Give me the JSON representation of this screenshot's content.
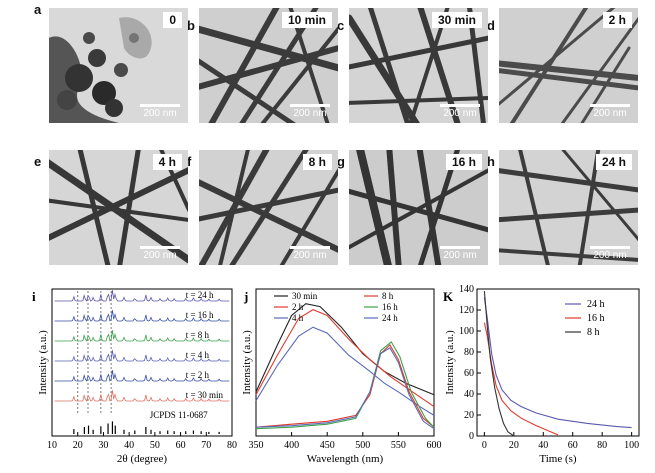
{
  "panels": [
    {
      "letter": "a",
      "time": "0",
      "scale": "200 nm"
    },
    {
      "letter": "b",
      "time": "10 min",
      "scale": "200 nm"
    },
    {
      "letter": "c",
      "time": "30 min",
      "scale": "200 nm"
    },
    {
      "letter": "d",
      "time": "2 h",
      "scale": "200 nm"
    },
    {
      "letter": "e",
      "time": "4 h",
      "scale": "200 nm"
    },
    {
      "letter": "f",
      "time": "8 h",
      "scale": "200 nm"
    },
    {
      "letter": "g",
      "time": "16 h",
      "scale": "200 nm"
    },
    {
      "letter": "h",
      "time": "24 h",
      "scale": "200 nm"
    }
  ],
  "chart_data": [
    {
      "type": "line",
      "panel": "i",
      "xlabel": "2θ (degree)",
      "ylabel": "Intensity (a.u.)",
      "xlim": [
        10,
        80
      ],
      "xticks": [
        10,
        20,
        30,
        40,
        50,
        60,
        70,
        80
      ],
      "series": [
        {
          "name": "t = 24 h",
          "color": "#5b55b0"
        },
        {
          "name": "t = 16 h",
          "color": "#3a4fa8"
        },
        {
          "name": "t = 8 h",
          "color": "#3aa04a"
        },
        {
          "name": "t = 4 h",
          "color": "#5a62b5"
        },
        {
          "name": "t = 2 h",
          "color": "#3a4fa8"
        },
        {
          "name": "t = 30 min",
          "color": "#e07060"
        }
      ],
      "reference": {
        "name": "JCPDS 11-0687",
        "peaks": [
          {
            "x": 18.5,
            "h": 0.35
          },
          {
            "x": 22.6,
            "h": 0.5
          },
          {
            "x": 24.2,
            "h": 0.6
          },
          {
            "x": 26.0,
            "h": 0.3
          },
          {
            "x": 29.0,
            "h": 0.55
          },
          {
            "x": 31.8,
            "h": 0.75
          },
          {
            "x": 33.5,
            "h": 0.9
          },
          {
            "x": 34.6,
            "h": 0.6
          },
          {
            "x": 38.0,
            "h": 0.3
          },
          {
            "x": 42.2,
            "h": 0.25
          },
          {
            "x": 46.5,
            "h": 0.5
          },
          {
            "x": 48.5,
            "h": 0.3
          },
          {
            "x": 52.0,
            "h": 0.2
          },
          {
            "x": 55.0,
            "h": 0.25
          },
          {
            "x": 57.5,
            "h": 0.2
          },
          {
            "x": 62.0,
            "h": 0.2
          },
          {
            "x": 65.0,
            "h": 0.25
          },
          {
            "x": 68.0,
            "h": 0.2
          },
          {
            "x": 71.0,
            "h": 0.15
          },
          {
            "x": 75.0,
            "h": 0.15
          }
        ]
      },
      "marker_lines": [
        20,
        24,
        29,
        33
      ]
    },
    {
      "type": "line",
      "panel": "j",
      "xlabel": "Wavelength (nm)",
      "ylabel": "Intensity (a.u.)",
      "xlim": [
        350,
        600
      ],
      "xticks": [
        350,
        400,
        450,
        500,
        550,
        600
      ],
      "series": [
        {
          "name": "30 min",
          "color": "#222222",
          "points": [
            [
              350,
              0.3
            ],
            [
              380,
              0.62
            ],
            [
              400,
              0.82
            ],
            [
              420,
              0.9
            ],
            [
              440,
              0.88
            ],
            [
              470,
              0.74
            ],
            [
              500,
              0.56
            ],
            [
              530,
              0.44
            ],
            [
              560,
              0.36
            ],
            [
              600,
              0.28
            ]
          ]
        },
        {
          "name": "2 h",
          "color": "#e03a2c",
          "points": [
            [
              350,
              0.28
            ],
            [
              380,
              0.55
            ],
            [
              410,
              0.8
            ],
            [
              430,
              0.86
            ],
            [
              450,
              0.82
            ],
            [
              480,
              0.66
            ],
            [
              510,
              0.52
            ],
            [
              540,
              0.4
            ],
            [
              570,
              0.3
            ],
            [
              600,
              0.2
            ]
          ]
        },
        {
          "name": "4 h",
          "color": "#5a6ab8",
          "points": [
            [
              350,
              0.24
            ],
            [
              380,
              0.48
            ],
            [
              410,
              0.68
            ],
            [
              430,
              0.74
            ],
            [
              450,
              0.7
            ],
            [
              480,
              0.55
            ],
            [
              510,
              0.44
            ],
            [
              530,
              0.36
            ],
            [
              550,
              0.3
            ],
            [
              580,
              0.2
            ],
            [
              600,
              0.14
            ]
          ]
        },
        {
          "name": "8 h",
          "color": "#e03a2c",
          "points": [
            [
              350,
              0.06
            ],
            [
              400,
              0.08
            ],
            [
              450,
              0.1
            ],
            [
              490,
              0.14
            ],
            [
              510,
              0.28
            ],
            [
              525,
              0.56
            ],
            [
              538,
              0.62
            ],
            [
              550,
              0.52
            ],
            [
              565,
              0.3
            ],
            [
              585,
              0.12
            ],
            [
              600,
              0.06
            ]
          ]
        },
        {
          "name": "16 h",
          "color": "#3aa04a",
          "points": [
            [
              350,
              0.05
            ],
            [
              400,
              0.06
            ],
            [
              450,
              0.08
            ],
            [
              490,
              0.12
            ],
            [
              510,
              0.3
            ],
            [
              525,
              0.58
            ],
            [
              540,
              0.64
            ],
            [
              552,
              0.54
            ],
            [
              568,
              0.3
            ],
            [
              588,
              0.12
            ],
            [
              600,
              0.06
            ]
          ]
        },
        {
          "name": "24 h",
          "color": "#5a6ab8",
          "points": [
            [
              350,
              0.06
            ],
            [
              400,
              0.07
            ],
            [
              450,
              0.09
            ],
            [
              490,
              0.13
            ],
            [
              510,
              0.3
            ],
            [
              525,
              0.56
            ],
            [
              538,
              0.6
            ],
            [
              550,
              0.5
            ],
            [
              565,
              0.28
            ],
            [
              585,
              0.1
            ],
            [
              600,
              0.05
            ]
          ]
        }
      ]
    },
    {
      "type": "line",
      "panel": "K",
      "xlabel": "Time (s)",
      "ylabel": "Intensity (a.u.)",
      "xlim": [
        -5,
        105
      ],
      "ylim": [
        0,
        140
      ],
      "xticks": [
        0,
        20,
        40,
        60,
        80,
        100
      ],
      "yticks": [
        0,
        20,
        40,
        60,
        80,
        100,
        120,
        140
      ],
      "series": [
        {
          "name": "24 h",
          "color": "#5a5ab0",
          "points": [
            [
              0,
              132
            ],
            [
              2,
              112
            ],
            [
              5,
              78
            ],
            [
              8,
              58
            ],
            [
              12,
              44
            ],
            [
              18,
              34
            ],
            [
              25,
              28
            ],
            [
              35,
              22
            ],
            [
              50,
              16
            ],
            [
              70,
              12
            ],
            [
              90,
              9
            ],
            [
              100,
              8
            ]
          ]
        },
        {
          "name": "16 h",
          "color": "#e03a2c",
          "points": [
            [
              0,
              108
            ],
            [
              2,
              95
            ],
            [
              5,
              68
            ],
            [
              8,
              48
            ],
            [
              12,
              34
            ],
            [
              18,
              24
            ],
            [
              25,
              17
            ],
            [
              35,
              10
            ],
            [
              45,
              4
            ],
            [
              50,
              1
            ]
          ]
        },
        {
          "name": "8 h",
          "color": "#333333",
          "points": [
            [
              0,
              138
            ],
            [
              2,
              104
            ],
            [
              4,
              74
            ],
            [
              7,
              46
            ],
            [
              10,
              26
            ],
            [
              13,
              12
            ],
            [
              16,
              4
            ],
            [
              20,
              0
            ]
          ]
        }
      ]
    }
  ]
}
